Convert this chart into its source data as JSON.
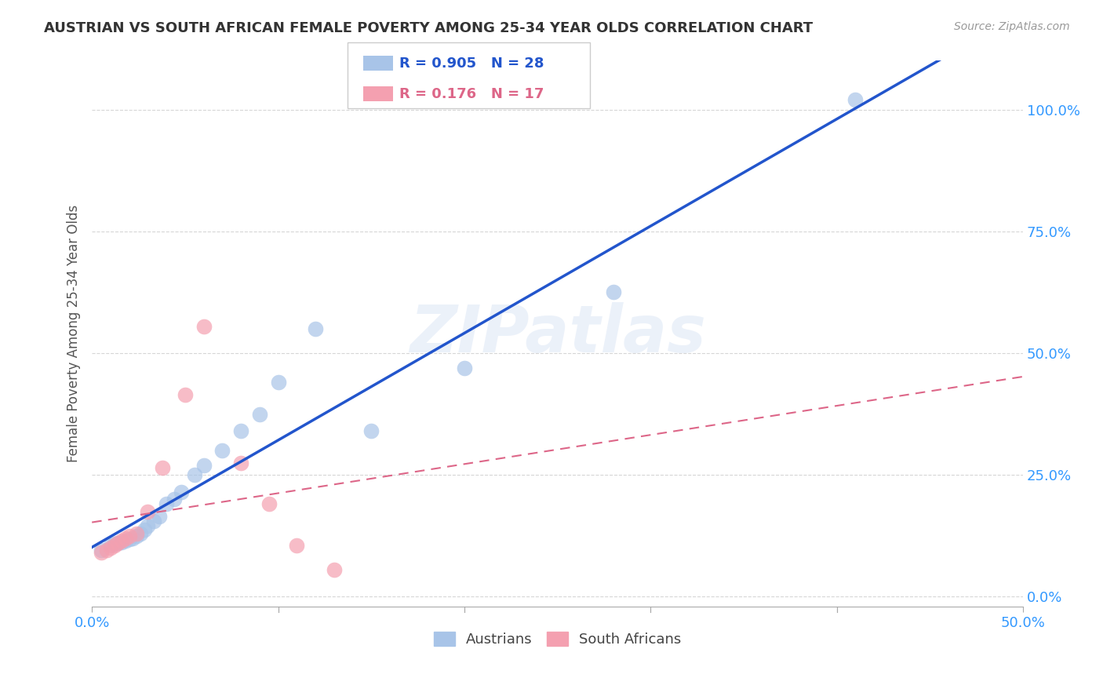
{
  "title": "AUSTRIAN VS SOUTH AFRICAN FEMALE POVERTY AMONG 25-34 YEAR OLDS CORRELATION CHART",
  "source": "Source: ZipAtlas.com",
  "ylabel": "Female Poverty Among 25-34 Year Olds",
  "xlim": [
    0.0,
    0.5
  ],
  "ylim": [
    -0.02,
    1.1
  ],
  "xticks": [
    0.0,
    0.1,
    0.2,
    0.3,
    0.4,
    0.5
  ],
  "xticklabels_show": [
    "0.0%",
    "",
    "",
    "",
    "",
    "50.0%"
  ],
  "yticks": [
    0.0,
    0.25,
    0.5,
    0.75,
    1.0
  ],
  "yticklabels": [
    "0.0%",
    "25.0%",
    "50.0%",
    "75.0%",
    "100.0%"
  ],
  "austrians_x": [
    0.005,
    0.01,
    0.012,
    0.014,
    0.016,
    0.018,
    0.02,
    0.022,
    0.024,
    0.026,
    0.028,
    0.03,
    0.033,
    0.036,
    0.04,
    0.044,
    0.048,
    0.055,
    0.06,
    0.07,
    0.08,
    0.09,
    0.1,
    0.12,
    0.15,
    0.2,
    0.28,
    0.41
  ],
  "austrians_y": [
    0.095,
    0.105,
    0.108,
    0.11,
    0.112,
    0.115,
    0.118,
    0.12,
    0.125,
    0.13,
    0.138,
    0.145,
    0.155,
    0.165,
    0.19,
    0.2,
    0.215,
    0.25,
    0.27,
    0.3,
    0.34,
    0.375,
    0.44,
    0.55,
    0.34,
    0.47,
    0.625,
    1.02
  ],
  "south_africans_x": [
    0.005,
    0.008,
    0.01,
    0.012,
    0.014,
    0.016,
    0.018,
    0.02,
    0.024,
    0.03,
    0.038,
    0.05,
    0.06,
    0.08,
    0.095,
    0.11,
    0.13
  ],
  "south_africans_y": [
    0.09,
    0.095,
    0.1,
    0.105,
    0.11,
    0.115,
    0.12,
    0.125,
    0.13,
    0.175,
    0.265,
    0.415,
    0.555,
    0.275,
    0.19,
    0.105,
    0.055
  ],
  "R_austrians": 0.905,
  "N_austrians": 28,
  "R_south_africans": 0.176,
  "N_south_africans": 17,
  "color_austrians": "#a8c4e8",
  "color_south_africans": "#f4a0b0",
  "line_color_austrians": "#2255cc",
  "line_color_south_africans": "#dd6688",
  "watermark_text": "ZIPatlas",
  "background_color": "#ffffff",
  "grid_color": "#cccccc",
  "title_color": "#333333",
  "axis_tick_color": "#3399ff",
  "dot_size": 200
}
